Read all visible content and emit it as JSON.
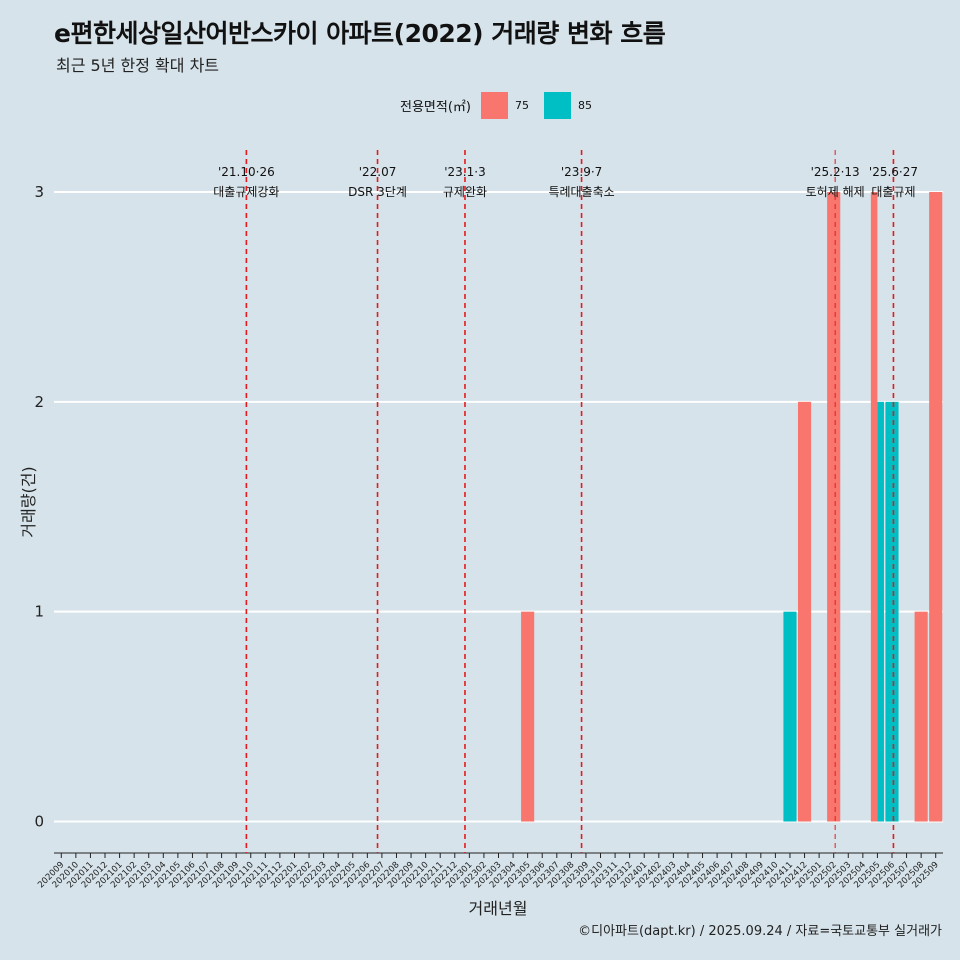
{
  "header": {
    "title": "e편한세상일산어반스카이 아파트(2022) 거래량 변화 흐름",
    "subtitle": "최근 5년 한정 확대 차트"
  },
  "legend": {
    "title": "전용면적(㎡)",
    "items": [
      {
        "label": "75",
        "color": "#f8766d"
      },
      {
        "label": "85",
        "color": "#00bfc4"
      }
    ]
  },
  "caption": "©디아파트(dapt.kr) / 2025.09.24 / 자료=국토교통부 실거래가",
  "chart_data": {
    "type": "bar",
    "title": "e편한세상일산어반스카이 아파트(2022) 거래량 변화 흐름",
    "xlabel": "거래년월",
    "ylabel": "거래량(건)",
    "ylim": [
      -0.15,
      3.2
    ],
    "yticks": [
      0,
      1,
      2,
      3
    ],
    "grid": true,
    "legend_position": "top-center",
    "categories": [
      "202009",
      "202010",
      "202011",
      "202012",
      "202101",
      "202102",
      "202103",
      "202104",
      "202105",
      "202106",
      "202107",
      "202108",
      "202109",
      "202110",
      "202111",
      "202112",
      "202201",
      "202202",
      "202203",
      "202204",
      "202205",
      "202206",
      "202207",
      "202208",
      "202209",
      "202210",
      "202211",
      "202212",
      "202301",
      "202302",
      "202303",
      "202304",
      "202305",
      "202306",
      "202307",
      "202308",
      "202309",
      "202310",
      "202311",
      "202312",
      "202401",
      "202402",
      "202403",
      "202404",
      "202405",
      "202406",
      "202407",
      "202408",
      "202409",
      "202410",
      "202411",
      "202412",
      "202501",
      "202502",
      "202503",
      "202504",
      "202505",
      "202506",
      "202507",
      "202508",
      "202509"
    ],
    "series": [
      {
        "name": "75",
        "color": "#f8766d",
        "values": [
          0,
          0,
          0,
          0,
          0,
          0,
          0,
          0,
          0,
          0,
          0,
          0,
          0,
          0,
          0,
          0,
          0,
          0,
          0,
          0,
          0,
          0,
          0,
          0,
          0,
          0,
          0,
          0,
          0,
          0,
          0,
          0,
          1,
          0,
          0,
          0,
          0,
          0,
          0,
          0,
          0,
          0,
          0,
          0,
          0,
          0,
          0,
          0,
          0,
          0,
          0,
          2,
          0,
          3,
          0,
          0,
          3,
          0,
          0,
          1,
          3
        ]
      },
      {
        "name": "85",
        "color": "#00bfc4",
        "values": [
          0,
          0,
          0,
          0,
          0,
          0,
          0,
          0,
          0,
          0,
          0,
          0,
          0,
          0,
          0,
          0,
          0,
          0,
          0,
          0,
          0,
          0,
          0,
          0,
          0,
          0,
          0,
          0,
          0,
          0,
          0,
          0,
          0,
          0,
          0,
          0,
          0,
          0,
          0,
          0,
          0,
          0,
          0,
          0,
          0,
          0,
          0,
          0,
          0,
          0,
          1,
          0,
          0,
          0,
          0,
          0,
          2,
          2,
          0,
          0,
          0
        ]
      }
    ],
    "bar_layout": [
      {
        "cat": "202305",
        "items": [
          {
            "s": 0,
            "v": 1
          }
        ]
      },
      {
        "cat": "202411",
        "items": [
          {
            "s": 1,
            "v": 1
          }
        ]
      },
      {
        "cat": "202412",
        "items": [
          {
            "s": 0,
            "v": 2
          }
        ]
      },
      {
        "cat": "202502",
        "items": [
          {
            "s": 0,
            "v": 3
          }
        ]
      },
      {
        "cat": "202505",
        "items": [
          {
            "s": 0,
            "v": 3
          },
          {
            "s": 1,
            "v": 2
          }
        ]
      },
      {
        "cat": "202506",
        "items": [
          {
            "s": 1,
            "v": 2
          }
        ]
      },
      {
        "cat": "202508",
        "items": [
          {
            "s": 0,
            "v": 1
          }
        ]
      },
      {
        "cat": "202509",
        "items": [
          {
            "s": 0,
            "v": 3
          }
        ]
      }
    ],
    "events": [
      {
        "x": 13.2,
        "date": "'21.10·26",
        "label": "대출규제강화",
        "small": false
      },
      {
        "x": 22.2,
        "date": "'22.07",
        "label": "DSR 3단계",
        "small": false
      },
      {
        "x": 28.2,
        "date": "'23.1·3",
        "label": "규제완화",
        "small": false
      },
      {
        "x": 36.2,
        "date": "'23.9·7",
        "label": "특례대출축소",
        "small": false
      },
      {
        "x": 53.6,
        "date": "'25.2·13",
        "label": "토허제 해제",
        "small": true
      },
      {
        "x": 57.6,
        "date": "'25.6·27",
        "label": "대출규제",
        "small": false
      }
    ]
  }
}
